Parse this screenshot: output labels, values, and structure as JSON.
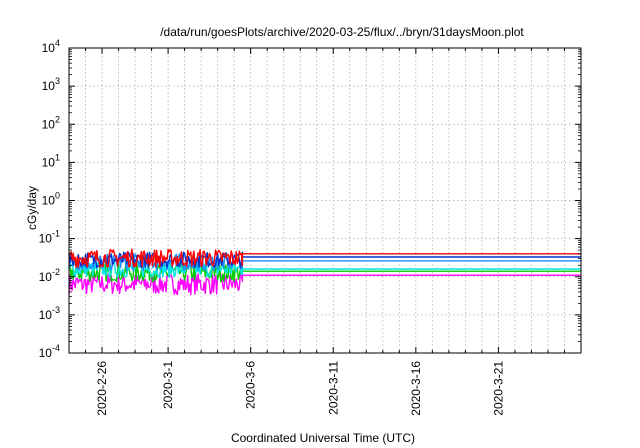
{
  "chart_data": {
    "type": "line",
    "title": "/data/run/goesPlots/archive/2020-03-25/flux/../bryn/31daysMoon.plot",
    "xlabel": "Coordinated Universal Time (UTC)",
    "ylabel": "cGy/day",
    "x_scale": "time",
    "xlim": [
      "2020-02-24T00:00",
      "2020-03-26T00:00"
    ],
    "y_scale": "log",
    "ylim": [
      0.0001,
      10000
    ],
    "grid": true,
    "x_ticks": [
      {
        "date": "2020-02-26",
        "label": "2020-2-26"
      },
      {
        "date": "2020-03-01",
        "label": "2020-3-1"
      },
      {
        "date": "2020-03-06",
        "label": "2020-3-6"
      },
      {
        "date": "2020-03-11",
        "label": "2020-3-11"
      },
      {
        "date": "2020-03-16",
        "label": "2020-3-16"
      },
      {
        "date": "2020-03-21",
        "label": "2020-3-21"
      }
    ],
    "y_ticks": [
      {
        "value": 0.0001,
        "base": "10",
        "exp": "-4"
      },
      {
        "value": 0.001,
        "base": "10",
        "exp": "-3"
      },
      {
        "value": 0.01,
        "base": "10",
        "exp": "-2"
      },
      {
        "value": 0.1,
        "base": "10",
        "exp": "-1"
      },
      {
        "value": 1,
        "base": "10",
        "exp": "0"
      },
      {
        "value": 10,
        "base": "10",
        "exp": "1"
      },
      {
        "value": 100,
        "base": "10",
        "exp": "2"
      },
      {
        "value": 1000,
        "base": "10",
        "exp": "3"
      },
      {
        "value": 10000,
        "base": "10",
        "exp": "4"
      }
    ],
    "series": [
      {
        "color": "#ff00ff",
        "start": "2020-02-24T00:00",
        "noisy_end": "2020-03-05T12:00",
        "end": "2020-03-26T00:00",
        "level": 0.0065,
        "flat_level": 0.011,
        "noise": 0.35
      },
      {
        "color": "#00cc00",
        "start": "2020-02-24T00:00",
        "noisy_end": "2020-03-05T12:00",
        "end": "2020-03-26T00:00",
        "level": 0.013,
        "flat_level": 0.014,
        "noise": 0.3
      },
      {
        "color": "#00e5e5",
        "start": "2020-02-24T00:00",
        "noisy_end": "2020-03-05T12:00",
        "end": "2020-03-26T00:00",
        "level": 0.016,
        "flat_level": 0.016,
        "noise": 0.28
      },
      {
        "color": "#1e90ff",
        "start": "2020-02-24T00:00",
        "noisy_end": "2020-03-05T12:00",
        "end": "2020-03-26T00:00",
        "level": 0.024,
        "flat_level": 0.026,
        "noise": 0.28
      },
      {
        "color": "#0033cc",
        "start": "2020-02-24T00:00",
        "noisy_end": "2020-03-05T12:00",
        "end": "2020-03-26T00:00",
        "level": 0.028,
        "flat_level": 0.033,
        "noise": 0.26
      },
      {
        "color": "#ff0000",
        "start": "2020-02-24T00:00",
        "noisy_end": "2020-03-05T12:00",
        "end": "2020-03-26T00:00",
        "level": 0.031,
        "flat_level": 0.04,
        "noise": 0.3
      }
    ]
  }
}
